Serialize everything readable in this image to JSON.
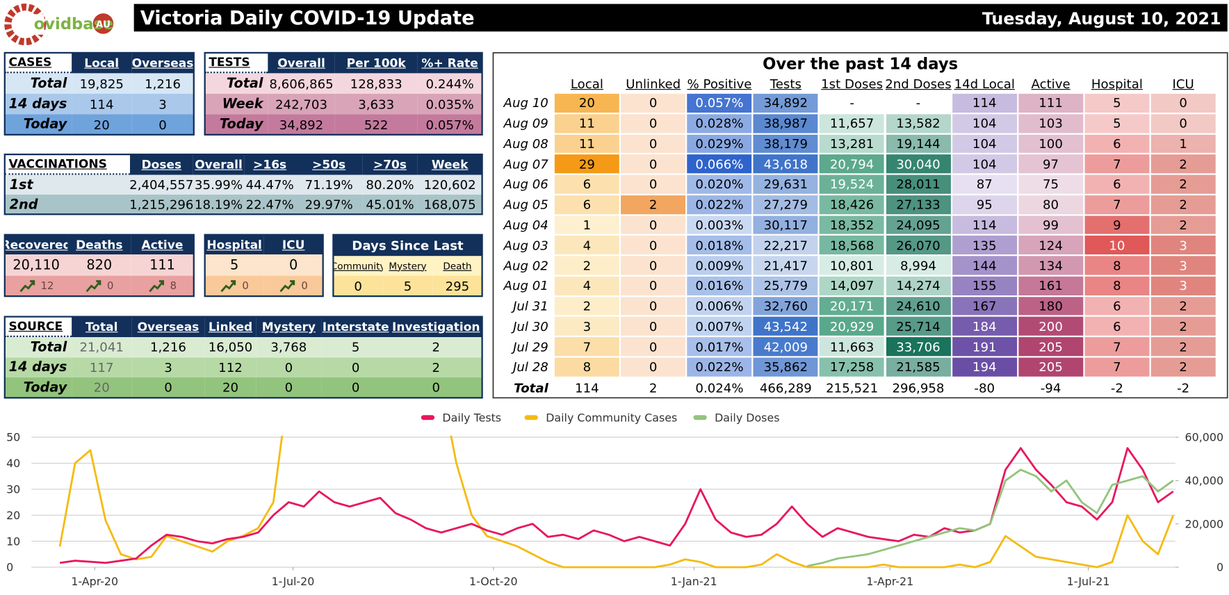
{
  "header": {
    "logo_text": "ovidbase",
    "logo_badge": "AU",
    "title": "Victoria Daily COVID-19 Update",
    "date": "Tuesday, August 10, 2021"
  },
  "cases": {
    "header": [
      "CASES",
      "Local",
      "Overseas"
    ],
    "rows": [
      [
        "Total",
        "19,825",
        "1,216"
      ],
      [
        "14 days",
        "114",
        "3"
      ],
      [
        "Today",
        "20",
        "0"
      ]
    ]
  },
  "tests": {
    "header": [
      "TESTS",
      "Overall",
      "Per 100k",
      "%+ Rate"
    ],
    "rows": [
      [
        "Total",
        "8,606,865",
        "128,833",
        "0.244%"
      ],
      [
        "Week",
        "242,703",
        "3,633",
        "0.035%"
      ],
      [
        "Today",
        "34,892",
        "522",
        "0.057%"
      ]
    ]
  },
  "vaccinations": {
    "header": [
      "VACCINATIONS",
      "Doses",
      "Overall",
      ">16s",
      ">50s",
      ">70s",
      "Week"
    ],
    "rows": [
      [
        "1st",
        "2,404,557",
        "35.99%",
        "44.47%",
        "71.19%",
        "80.20%",
        "120,602"
      ],
      [
        "2nd",
        "1,215,296",
        "18.19%",
        "22.47%",
        "29.97%",
        "45.01%",
        "168,075"
      ]
    ]
  },
  "outcomes": {
    "header": [
      "Recovered",
      "Deaths",
      "Active"
    ],
    "values": [
      "20,110",
      "820",
      "111"
    ],
    "changes": [
      "12",
      "0",
      "8"
    ]
  },
  "hospital": {
    "header": [
      "Hospital",
      "ICU"
    ],
    "values": [
      "5",
      "0"
    ],
    "changes": [
      "0",
      "0"
    ]
  },
  "days_since": {
    "title": "Days Since Last",
    "header": [
      "Community",
      "Mystery",
      "Death"
    ],
    "values": [
      "0",
      "5",
      "295"
    ]
  },
  "source": {
    "header": [
      "SOURCE",
      "Total",
      "Overseas",
      "Linked",
      "Mystery",
      "Interstate",
      "Investigation"
    ],
    "rows": [
      [
        "Total",
        "21,041",
        "1,216",
        "16,050",
        "3,768",
        "5",
        "2"
      ],
      [
        "14 days",
        "117",
        "3",
        "112",
        "0",
        "0",
        "2"
      ],
      [
        "Today",
        "20",
        "0",
        "20",
        "0",
        "0",
        "0"
      ]
    ]
  },
  "fourteen_days": {
    "title": "Over the past 14 days",
    "header": [
      "Local",
      "Unlinked",
      "% Positive",
      "Tests",
      "1st Doses",
      "2nd Doses",
      "14d Local",
      "Active",
      "Hospital",
      "ICU"
    ],
    "rows": [
      [
        "Aug 10",
        "20",
        "0",
        "0.057%",
        "34,892",
        "-",
        "-",
        "114",
        "111",
        "5",
        "0"
      ],
      [
        "Aug 09",
        "11",
        "0",
        "0.028%",
        "38,987",
        "11,657",
        "13,582",
        "104",
        "103",
        "5",
        "0"
      ],
      [
        "Aug 08",
        "11",
        "0",
        "0.029%",
        "38,179",
        "13,281",
        "19,144",
        "104",
        "100",
        "6",
        "1"
      ],
      [
        "Aug 07",
        "29",
        "0",
        "0.066%",
        "43,618",
        "20,794",
        "30,040",
        "104",
        "97",
        "7",
        "2"
      ],
      [
        "Aug 06",
        "6",
        "0",
        "0.020%",
        "29,631",
        "19,524",
        "28,011",
        "87",
        "75",
        "6",
        "2"
      ],
      [
        "Aug 05",
        "6",
        "2",
        "0.022%",
        "27,279",
        "18,426",
        "27,133",
        "95",
        "80",
        "7",
        "2"
      ],
      [
        "Aug 04",
        "1",
        "0",
        "0.003%",
        "30,117",
        "18,352",
        "24,095",
        "114",
        "99",
        "9",
        "2"
      ],
      [
        "Aug 03",
        "4",
        "0",
        "0.018%",
        "22,217",
        "18,568",
        "26,070",
        "135",
        "124",
        "10",
        "3"
      ],
      [
        "Aug 02",
        "2",
        "0",
        "0.009%",
        "21,417",
        "10,801",
        "8,994",
        "144",
        "134",
        "8",
        "3"
      ],
      [
        "Aug 01",
        "4",
        "0",
        "0.016%",
        "25,779",
        "14,097",
        "14,274",
        "155",
        "161",
        "8",
        "3"
      ],
      [
        "Jul 31",
        "2",
        "0",
        "0.006%",
        "32,760",
        "20,171",
        "24,610",
        "167",
        "180",
        "6",
        "2"
      ],
      [
        "Jul 30",
        "3",
        "0",
        "0.007%",
        "43,542",
        "20,929",
        "25,714",
        "184",
        "200",
        "6",
        "2"
      ],
      [
        "Jul 29",
        "7",
        "0",
        "0.017%",
        "42,009",
        "11,663",
        "33,706",
        "191",
        "205",
        "7",
        "2"
      ],
      [
        "Jul 28",
        "8",
        "0",
        "0.022%",
        "35,862",
        "17,258",
        "21,585",
        "194",
        "205",
        "7",
        "2"
      ]
    ],
    "total": [
      "Total",
      "114",
      "2",
      "0.024%",
      "466,289",
      "215,521",
      "296,958",
      "-80",
      "-94",
      "-2",
      "-2"
    ]
  },
  "chart_data": {
    "type": "line",
    "x": [
      "2020-03-16",
      "2020-03-23",
      "2020-03-30",
      "2020-04-06",
      "2020-04-13",
      "2020-04-20",
      "2020-04-27",
      "2020-05-04",
      "2020-05-11",
      "2020-05-18",
      "2020-05-25",
      "2020-06-01",
      "2020-06-08",
      "2020-06-15",
      "2020-06-22",
      "2020-06-29",
      "2020-07-06",
      "2020-07-13",
      "2020-07-20",
      "2020-07-27",
      "2020-08-03",
      "2020-08-10",
      "2020-08-17",
      "2020-08-24",
      "2020-08-31",
      "2020-09-07",
      "2020-09-14",
      "2020-09-21",
      "2020-09-28",
      "2020-10-05",
      "2020-10-12",
      "2020-10-19",
      "2020-10-26",
      "2020-11-02",
      "2020-11-09",
      "2020-11-16",
      "2020-11-23",
      "2020-11-30",
      "2020-12-07",
      "2020-12-14",
      "2020-12-21",
      "2020-12-28",
      "2021-01-04",
      "2021-01-11",
      "2021-01-18",
      "2021-01-25",
      "2021-02-01",
      "2021-02-08",
      "2021-02-15",
      "2021-02-22",
      "2021-03-01",
      "2021-03-08",
      "2021-03-15",
      "2021-03-22",
      "2021-03-29",
      "2021-04-05",
      "2021-04-12",
      "2021-04-19",
      "2021-04-26",
      "2021-05-03",
      "2021-05-10",
      "2021-05-17",
      "2021-05-24",
      "2021-05-31",
      "2021-06-07",
      "2021-06-14",
      "2021-06-21",
      "2021-06-28",
      "2021-07-05",
      "2021-07-12",
      "2021-07-19",
      "2021-07-26",
      "2021-08-02",
      "2021-08-09"
    ],
    "xlim": [
      "2020-03-03",
      "2021-08-10"
    ],
    "xticks": [
      {
        "value": "2020-04-01",
        "label": "1-Apr-20"
      },
      {
        "value": "2020-07-01",
        "label": "1-Jul-20"
      },
      {
        "value": "2020-10-01",
        "label": "1-Oct-20"
      },
      {
        "value": "2021-01-01",
        "label": "1-Jan-21"
      },
      {
        "value": "2021-04-01",
        "label": "1-Apr-21"
      },
      {
        "value": "2021-07-01",
        "label": "1-Jul-21"
      }
    ],
    "ylim": [
      0,
      50
    ],
    "yticks": [
      0,
      10,
      20,
      30,
      40,
      50
    ],
    "y2lim": [
      0,
      60000
    ],
    "y2ticks": [
      0,
      {
        "value": 20000,
        "label": "20,000"
      },
      {
        "value": 40000,
        "label": "40,000"
      },
      {
        "value": 60000,
        "label": "60,000"
      }
    ],
    "grid": true,
    "legend": "top",
    "series": [
      {
        "name": "Daily Tests",
        "color": "#e8175d",
        "axis": "y2",
        "values": [
          2000,
          3000,
          2500,
          2000,
          3000,
          4000,
          10000,
          15000,
          14000,
          12000,
          11000,
          13000,
          14000,
          16000,
          24000,
          30000,
          28000,
          35000,
          30000,
          28000,
          30000,
          32000,
          25000,
          22000,
          18000,
          16000,
          18000,
          20000,
          17000,
          15000,
          18000,
          20000,
          14000,
          15000,
          13000,
          17000,
          15000,
          12000,
          14000,
          12000,
          10000,
          20000,
          36000,
          22000,
          16000,
          14000,
          15000,
          20000,
          28000,
          20000,
          14000,
          18000,
          16000,
          14000,
          13000,
          12000,
          15000,
          14000,
          18000,
          16000,
          17000,
          20000,
          45000,
          55000,
          45000,
          38000,
          30000,
          28000,
          22000,
          30000,
          55000,
          45000,
          30000,
          35000
        ]
      },
      {
        "name": "Daily Community Cases",
        "color": "#f5bb12",
        "values": [
          8,
          40,
          45,
          18,
          5,
          3,
          4,
          12,
          10,
          8,
          6,
          10,
          12,
          15,
          25,
          70,
          180,
          300,
          400,
          500,
          450,
          350,
          250,
          160,
          100,
          70,
          40,
          20,
          12,
          10,
          8,
          5,
          2,
          0,
          0,
          0,
          0,
          0,
          0,
          0,
          1,
          3,
          2,
          0,
          0,
          0,
          1,
          5,
          2,
          0,
          0,
          0,
          0,
          0,
          1,
          0,
          0,
          0,
          0,
          1,
          0,
          2,
          12,
          8,
          4,
          3,
          2,
          1,
          0,
          2,
          20,
          10,
          5,
          20
        ]
      },
      {
        "name": "Daily Doses",
        "color": "#93c47d",
        "axis": "y2",
        "values": [
          null,
          null,
          null,
          null,
          null,
          null,
          null,
          null,
          null,
          null,
          null,
          null,
          null,
          null,
          null,
          null,
          null,
          null,
          null,
          null,
          null,
          null,
          null,
          null,
          null,
          null,
          null,
          null,
          null,
          null,
          null,
          null,
          null,
          null,
          null,
          null,
          null,
          null,
          null,
          null,
          null,
          null,
          null,
          null,
          null,
          null,
          null,
          null,
          null,
          500,
          2000,
          4000,
          5000,
          6000,
          8000,
          10000,
          12000,
          14000,
          16000,
          18000,
          17000,
          20000,
          40000,
          45000,
          42000,
          35000,
          40000,
          30000,
          25000,
          38000,
          40000,
          42000,
          35000,
          40000
        ]
      }
    ]
  }
}
